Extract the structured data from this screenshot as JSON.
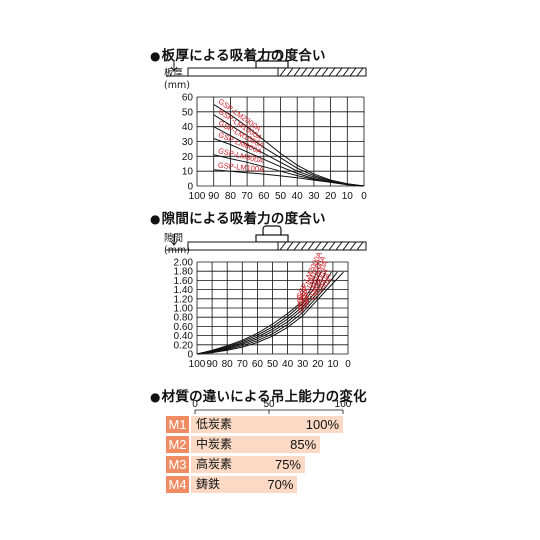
{
  "headings": {
    "thickness": "板厚による吸着力の度合い",
    "gap": "隙間による吸着力の度合い",
    "material": "材質の違いによる吊上能力の変化"
  },
  "bullet": "●",
  "chart_data": [
    {
      "type": "line",
      "ylabel_line1": "板厚",
      "ylabel_line2": "(mm)",
      "x_ticks": [
        "100",
        "90",
        "80",
        "70",
        "60",
        "50",
        "40",
        "30",
        "20",
        "10",
        "0"
      ],
      "y_ticks": [
        "60",
        "50",
        "40",
        "30",
        "20",
        "10",
        "0"
      ],
      "xlim": [
        100,
        0
      ],
      "ylim": [
        0,
        60
      ],
      "series": [
        {
          "name": "GSP-LM2000A",
          "points": [
            [
              90,
              55
            ],
            [
              80,
              48
            ],
            [
              70,
              40
            ],
            [
              60,
              31
            ],
            [
              50,
              22
            ],
            [
              40,
              14
            ],
            [
              30,
              8
            ],
            [
              20,
              4
            ],
            [
              10,
              1.5
            ],
            [
              0,
              0
            ]
          ]
        },
        {
          "name": "GSP-LM1500A",
          "points": [
            [
              90,
              48
            ],
            [
              80,
              41
            ],
            [
              70,
              34
            ],
            [
              60,
              26
            ],
            [
              50,
              19
            ],
            [
              40,
              12
            ],
            [
              30,
              7
            ],
            [
              20,
              3.5
            ],
            [
              10,
              1.2
            ],
            [
              0,
              0
            ]
          ]
        },
        {
          "name": "GSP-LM1000A",
          "points": [
            [
              90,
              40
            ],
            [
              80,
              34
            ],
            [
              70,
              28
            ],
            [
              60,
              22
            ],
            [
              50,
              16
            ],
            [
              40,
              10
            ],
            [
              30,
              6
            ],
            [
              20,
              3
            ],
            [
              10,
              1
            ],
            [
              0,
              0
            ]
          ]
        },
        {
          "name": "GSP-LM600A",
          "points": [
            [
              90,
              32
            ],
            [
              80,
              28
            ],
            [
              70,
              23
            ],
            [
              60,
              18
            ],
            [
              50,
              13
            ],
            [
              40,
              8.5
            ],
            [
              30,
              5
            ],
            [
              20,
              2.5
            ],
            [
              10,
              0.8
            ],
            [
              0,
              0
            ]
          ]
        },
        {
          "name": "GSP-LM300A",
          "points": [
            [
              90,
              21
            ],
            [
              80,
              18.5
            ],
            [
              70,
              16
            ],
            [
              60,
              13
            ],
            [
              50,
              10
            ],
            [
              40,
              7
            ],
            [
              30,
              4.5
            ],
            [
              20,
              2.5
            ],
            [
              10,
              1
            ],
            [
              0,
              0
            ]
          ]
        },
        {
          "name": "GSP-LM100A",
          "points": [
            [
              90,
              11
            ],
            [
              80,
              10
            ],
            [
              70,
              9
            ],
            [
              60,
              8
            ],
            [
              50,
              6.8
            ],
            [
              40,
              5.5
            ],
            [
              30,
              4
            ],
            [
              20,
              2.5
            ],
            [
              10,
              1.2
            ],
            [
              0,
              0
            ]
          ]
        }
      ]
    },
    {
      "type": "line",
      "ylabel_line1": "隙間",
      "ylabel_line2": "(mm)",
      "x_ticks": [
        "100",
        "90",
        "80",
        "70",
        "60",
        "50",
        "40",
        "30",
        "20",
        "10",
        "0"
      ],
      "y_ticks": [
        "2.00",
        "1.80",
        "1.60",
        "1.40",
        "1.20",
        "1.00",
        "0.80",
        "0.60",
        "0.40",
        "0.20",
        "0"
      ],
      "xlim": [
        100,
        0
      ],
      "ylim": [
        0,
        2.0
      ],
      "series": [
        {
          "name": "GSP-LM2000A",
          "points": [
            [
              100,
              0
            ],
            [
              90,
              0.08
            ],
            [
              80,
              0.18
            ],
            [
              70,
              0.3
            ],
            [
              60,
              0.45
            ],
            [
              50,
              0.65
            ],
            [
              40,
              0.88
            ],
            [
              30,
              1.15
            ],
            [
              25,
              1.4
            ],
            [
              21,
              1.78
            ]
          ]
        },
        {
          "name": "GSP-LM1500A",
          "points": [
            [
              100,
              0
            ],
            [
              90,
              0.07
            ],
            [
              80,
              0.16
            ],
            [
              70,
              0.27
            ],
            [
              60,
              0.41
            ],
            [
              50,
              0.59
            ],
            [
              40,
              0.82
            ],
            [
              30,
              1.1
            ],
            [
              23,
              1.4
            ],
            [
              18,
              1.78
            ]
          ]
        },
        {
          "name": "GSP-LM1000A",
          "points": [
            [
              100,
              0
            ],
            [
              90,
              0.06
            ],
            [
              80,
              0.14
            ],
            [
              70,
              0.24
            ],
            [
              60,
              0.37
            ],
            [
              50,
              0.54
            ],
            [
              40,
              0.76
            ],
            [
              30,
              1.03
            ],
            [
              20,
              1.4
            ],
            [
              15,
              1.78
            ]
          ]
        },
        {
          "name": "GSP-LM600A",
          "points": [
            [
              100,
              0
            ],
            [
              90,
              0.05
            ],
            [
              80,
              0.12
            ],
            [
              70,
              0.21
            ],
            [
              60,
              0.33
            ],
            [
              50,
              0.49
            ],
            [
              40,
              0.7
            ],
            [
              30,
              0.97
            ],
            [
              18,
              1.4
            ],
            [
              11,
              1.78
            ]
          ]
        },
        {
          "name": "GSP-LM300A",
          "points": [
            [
              100,
              0
            ],
            [
              90,
              0.04
            ],
            [
              80,
              0.1
            ],
            [
              70,
              0.18
            ],
            [
              60,
              0.29
            ],
            [
              50,
              0.44
            ],
            [
              40,
              0.64
            ],
            [
              30,
              0.9
            ],
            [
              16,
              1.4
            ],
            [
              7,
              1.78
            ]
          ]
        },
        {
          "name": "GSP-LM100A",
          "points": [
            [
              100,
              0
            ],
            [
              90,
              0.03
            ],
            [
              80,
              0.08
            ],
            [
              70,
              0.15
            ],
            [
              60,
              0.25
            ],
            [
              50,
              0.39
            ],
            [
              40,
              0.58
            ],
            [
              30,
              0.83
            ],
            [
              14,
              1.4
            ],
            [
              3,
              1.78
            ]
          ]
        }
      ]
    },
    {
      "type": "bar",
      "x_ticks": [
        "0",
        "50",
        "100"
      ],
      "xlim": [
        0,
        100
      ],
      "categories": [
        "M1",
        "M2",
        "M3",
        "M4"
      ],
      "materials": [
        "低炭素",
        "中炭素",
        "高炭素",
        "鋳鉄"
      ],
      "values": [
        100,
        85,
        75,
        70
      ],
      "value_labels": [
        "100%",
        "85%",
        "75%",
        "70%"
      ]
    }
  ],
  "colors": {
    "curve_label": "#d12027",
    "code_bg": "#ef8c63",
    "bar_bg": "#fbd9c4",
    "grid": "#111111"
  }
}
